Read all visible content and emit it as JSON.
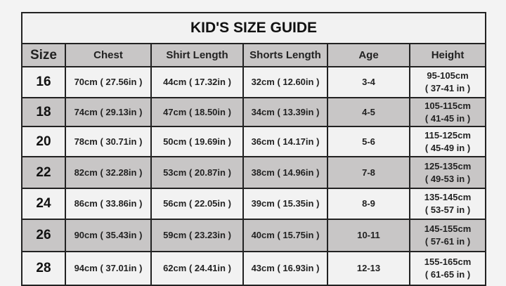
{
  "title": "KID'S SIZE GUIDE",
  "headers": [
    "Size",
    "Chest",
    "Shirt Length",
    "Shorts Length",
    "Age",
    "Height"
  ],
  "rows": [
    {
      "size": "16",
      "chest": "70cm ( 27.56in )",
      "shirt": "44cm ( 17.32in )",
      "shorts": "32cm ( 12.60in )",
      "age": "3-4",
      "height_cm": "95-105cm",
      "height_in": "( 37-41 in )"
    },
    {
      "size": "18",
      "chest": "74cm ( 29.13in )",
      "shirt": "47cm ( 18.50in )",
      "shorts": "34cm ( 13.39in )",
      "age": "4-5",
      "height_cm": "105-115cm",
      "height_in": "( 41-45 in )"
    },
    {
      "size": "20",
      "chest": "78cm ( 30.71in )",
      "shirt": "50cm ( 19.69in )",
      "shorts": "36cm ( 14.17in )",
      "age": "5-6",
      "height_cm": "115-125cm",
      "height_in": "( 45-49 in )"
    },
    {
      "size": "22",
      "chest": "82cm ( 32.28in )",
      "shirt": "53cm ( 20.87in )",
      "shorts": "38cm ( 14.96in )",
      "age": "7-8",
      "height_cm": "125-135cm",
      "height_in": "( 49-53 in )"
    },
    {
      "size": "24",
      "chest": "86cm ( 33.86in )",
      "shirt": "56cm ( 22.05in )",
      "shorts": "39cm ( 15.35in )",
      "age": "8-9",
      "height_cm": "135-145cm",
      "height_in": "( 53-57 in )"
    },
    {
      "size": "26",
      "chest": "90cm ( 35.43in )",
      "shirt": "59cm ( 23.23in )",
      "shorts": "40cm ( 15.75in )",
      "age": "10-11",
      "height_cm": "145-155cm",
      "height_in": "( 57-61 in )"
    },
    {
      "size": "28",
      "chest": "94cm ( 37.01in )",
      "shirt": "62cm ( 24.41in )",
      "shorts": "43cm ( 16.93in )",
      "age": "12-13",
      "height_cm": "155-165cm",
      "height_in": "( 61-65 in )"
    }
  ],
  "colors": {
    "light_row": "#f2f2f2",
    "dark_row": "#c8c6c6",
    "border": "#222222"
  }
}
